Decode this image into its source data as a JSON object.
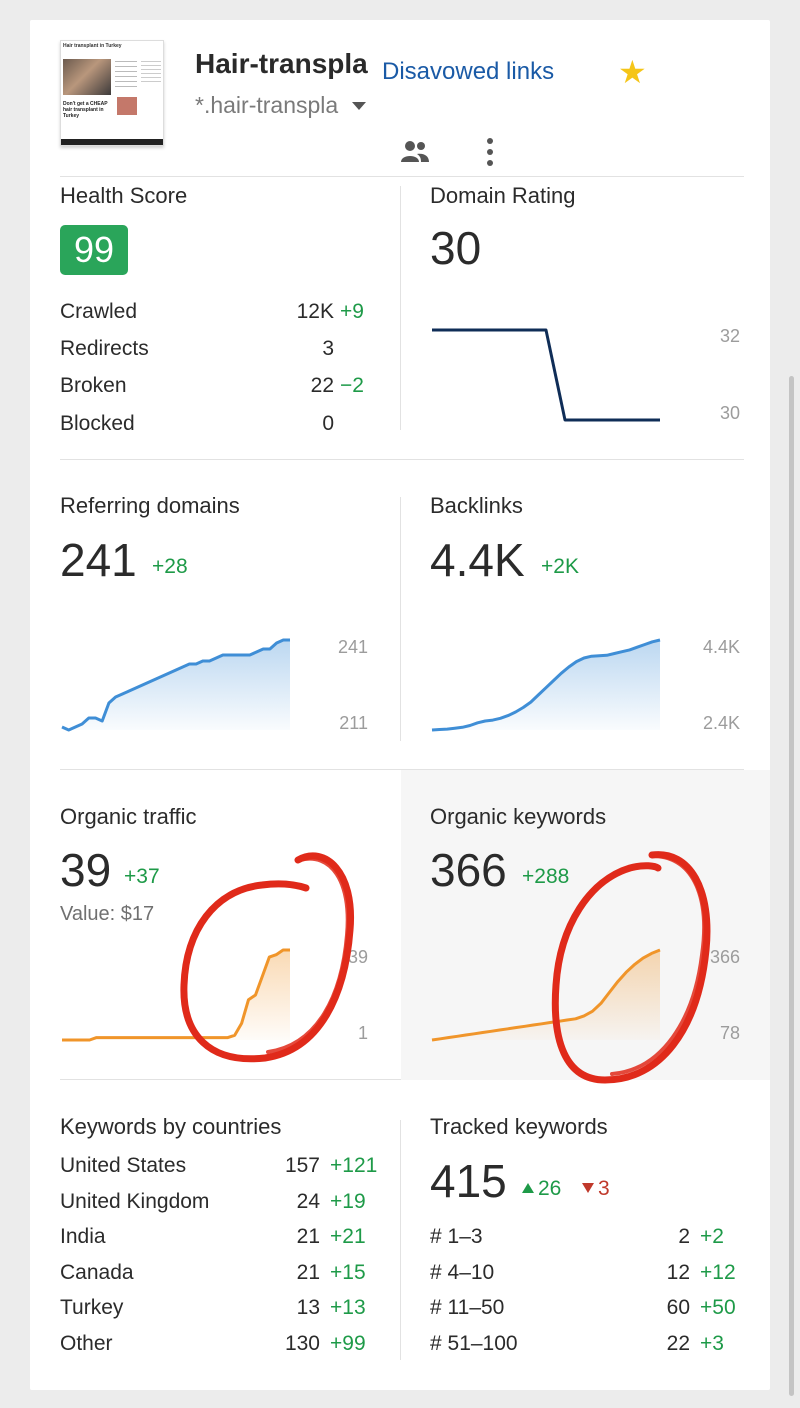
{
  "header": {
    "site_name": "Hair-transpla",
    "site_url": "*.hair-transpla",
    "disavowed_label": "Disavowed links",
    "thumbnail": {
      "title": "Hair transplant in Turkey",
      "text": "Don't get a CHEAP hair transplant in Turkey"
    }
  },
  "health": {
    "title": "Health Score",
    "score": "99",
    "rows": [
      {
        "label": "Crawled",
        "value": "12K",
        "delta": "+9"
      },
      {
        "label": "Redirects",
        "value": "3",
        "delta": ""
      },
      {
        "label": "Broken",
        "value": "22",
        "delta": "−2"
      },
      {
        "label": "Blocked",
        "value": "0",
        "delta": ""
      }
    ]
  },
  "domain_rating": {
    "title": "Domain Rating",
    "value": "30",
    "axis_top": "32",
    "axis_bottom": "30"
  },
  "referring_domains": {
    "title": "Referring domains",
    "value": "241",
    "delta": "+28",
    "axis_top": "241",
    "axis_bottom": "211"
  },
  "backlinks": {
    "title": "Backlinks",
    "value": "4.4K",
    "delta": "+2K",
    "axis_top": "4.4K",
    "axis_bottom": "2.4K"
  },
  "organic_traffic": {
    "title": "Organic traffic",
    "value": "39",
    "delta": "+37",
    "value_text": "Value: $17",
    "axis_top": "39",
    "axis_bottom": "1"
  },
  "organic_keywords": {
    "title": "Organic keywords",
    "value": "366",
    "delta": "+288",
    "axis_top": "366",
    "axis_bottom": "78"
  },
  "keywords_by_countries": {
    "title": "Keywords by countries",
    "rows": [
      {
        "label": "United States",
        "value": "157",
        "delta": "+121"
      },
      {
        "label": "United Kingdom",
        "value": "24",
        "delta": "+19"
      },
      {
        "label": "India",
        "value": "21",
        "delta": "+21"
      },
      {
        "label": "Canada",
        "value": "21",
        "delta": "+15"
      },
      {
        "label": "Turkey",
        "value": "13",
        "delta": "+13"
      },
      {
        "label": "Other",
        "value": "130",
        "delta": "+99"
      }
    ]
  },
  "tracked_keywords": {
    "title": "Tracked keywords",
    "value": "415",
    "up": "26",
    "down": "3",
    "rows": [
      {
        "label": "# 1–3",
        "value": "2",
        "delta": "+2"
      },
      {
        "label": "# 4–10",
        "value": "12",
        "delta": "+12"
      },
      {
        "label": "# 11–50",
        "value": "60",
        "delta": "+50"
      },
      {
        "label": "# 51–100",
        "value": "22",
        "delta": "+3"
      }
    ]
  },
  "colors": {
    "accent_blue": "#1a5aa6",
    "positive": "#1e9a48",
    "negative": "#c0392b",
    "badge": "#2aa55a",
    "line_blue": "#3f8ed6",
    "line_orange": "#f0952a",
    "line_navy": "#0f2d57",
    "annotation": "#e02a1a"
  },
  "chart_data": [
    {
      "type": "line",
      "id": "domain_rating",
      "y": [
        32,
        32,
        32,
        32,
        32,
        32,
        32,
        30,
        30,
        30,
        30,
        30,
        30
      ],
      "ylim": [
        30,
        32
      ]
    },
    {
      "type": "area",
      "id": "referring_domains",
      "y": [
        212,
        211,
        212,
        213,
        215,
        215,
        214,
        220,
        222,
        223,
        224,
        225,
        226,
        227,
        228,
        229,
        230,
        231,
        232,
        233,
        233,
        234,
        234,
        235,
        236,
        236,
        236,
        236,
        236,
        237,
        238,
        238,
        240,
        241,
        241
      ],
      "ylim": [
        211,
        241
      ]
    },
    {
      "type": "area",
      "id": "backlinks",
      "y": [
        2.4,
        2.41,
        2.42,
        2.44,
        2.46,
        2.5,
        2.56,
        2.6,
        2.62,
        2.66,
        2.72,
        2.8,
        2.9,
        3.02,
        3.18,
        3.34,
        3.5,
        3.66,
        3.8,
        3.92,
        4.0,
        4.04,
        4.05,
        4.06,
        4.1,
        4.14,
        4.18,
        4.24,
        4.3,
        4.36,
        4.4
      ],
      "ylim": [
        2.4,
        4.4
      ]
    },
    {
      "type": "area",
      "id": "organic_traffic",
      "y": [
        1,
        1,
        1,
        1,
        1,
        2,
        2,
        2,
        2,
        2,
        2,
        2,
        2,
        2,
        2,
        2,
        2,
        2,
        2,
        2,
        2,
        2,
        2,
        2,
        2,
        3,
        8,
        18,
        20,
        28,
        36,
        37,
        39,
        39
      ],
      "ylim": [
        1,
        39
      ]
    },
    {
      "type": "area",
      "id": "organic_keywords",
      "y": [
        78,
        82,
        86,
        90,
        94,
        98,
        102,
        106,
        110,
        114,
        118,
        122,
        126,
        130,
        134,
        138,
        142,
        146,
        155,
        170,
        195,
        230,
        265,
        295,
        320,
        340,
        355,
        366
      ],
      "ylim": [
        78,
        366
      ]
    }
  ]
}
